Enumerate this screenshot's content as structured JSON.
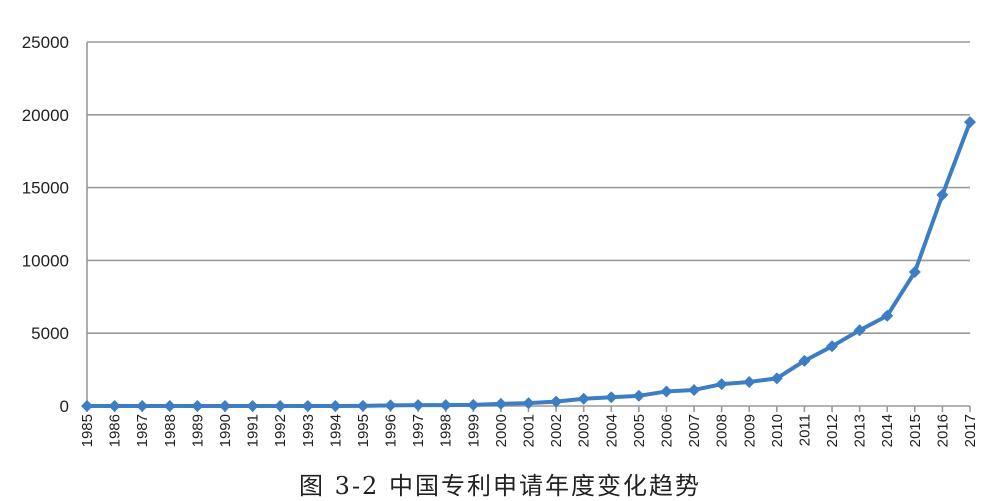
{
  "chart_data": {
    "type": "line",
    "categories": [
      "1985",
      "1986",
      "1987",
      "1988",
      "1989",
      "1990",
      "1991",
      "1992",
      "1993",
      "1994",
      "1995",
      "1996",
      "1997",
      "1998",
      "1999",
      "2000",
      "2001",
      "2002",
      "2003",
      "2004",
      "2005",
      "2006",
      "2007",
      "2008",
      "2009",
      "2010",
      "2011",
      "2012",
      "2013",
      "2014",
      "2015",
      "2016",
      "2017"
    ],
    "series": [
      {
        "values": [
          0,
          0,
          0,
          0,
          0,
          0,
          0,
          0,
          0,
          0,
          10,
          40,
          60,
          60,
          80,
          150,
          200,
          300,
          500,
          600,
          700,
          1000,
          1100,
          1500,
          1650,
          1900,
          3100,
          4100,
          5200,
          6200,
          9200,
          14500,
          19500
        ],
        "color": "#3c7dc4"
      }
    ],
    "ylim": [
      0,
      25000
    ],
    "yticks": [
      0,
      5000,
      10000,
      15000,
      20000,
      25000
    ],
    "xlabel": "",
    "ylabel": "",
    "grid": true,
    "legend": "none",
    "marker": "diamond"
  },
  "caption": "图 3-2 中国专利申请年度变化趋势"
}
